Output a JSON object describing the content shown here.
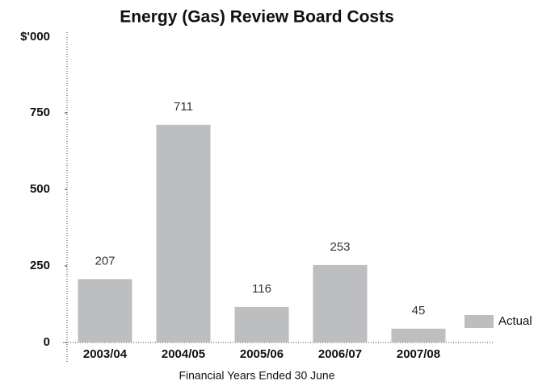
{
  "chart_data": {
    "type": "bar",
    "title": "Energy (Gas) Review Board Costs",
    "y_label": "$'000",
    "x_label": "Financial Years Ended 30 June",
    "categories": [
      "2003/04",
      "2004/05",
      "2005/06",
      "2006/07",
      "2007/08"
    ],
    "series": [
      {
        "name": "Actual",
        "color": "#bcbec0",
        "values": [
          207,
          711,
          116,
          253,
          45
        ]
      }
    ],
    "ylim": [
      0,
      1000
    ],
    "yticks": [
      0,
      250,
      500,
      750
    ],
    "grid": false,
    "legend": "right"
  }
}
